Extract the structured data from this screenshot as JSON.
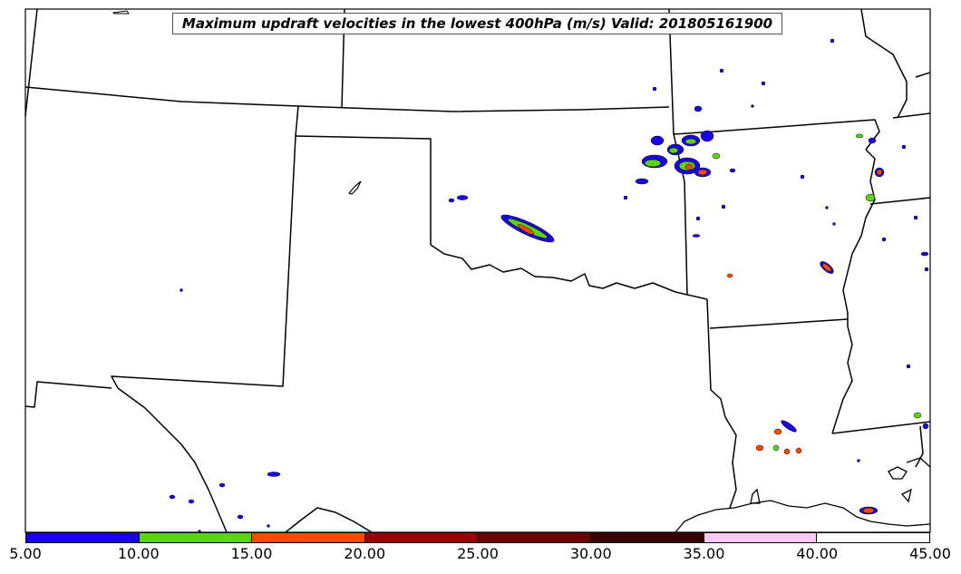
{
  "title": "Maximum updraft velocities in the lowest 400hPa (m/s) Valid: 201805161900",
  "colorbar": {
    "colors": [
      "#1a00e6",
      "#5bd411",
      "#ff4a00",
      "#990000",
      "#6e0000",
      "#3a0000",
      "#ffc8f4",
      "#ffffff"
    ],
    "tick_labels": [
      "5.00",
      "10.00",
      "15.00",
      "20.00",
      "25.00",
      "30.00",
      "35.00",
      "40.00",
      "45.00"
    ]
  }
}
